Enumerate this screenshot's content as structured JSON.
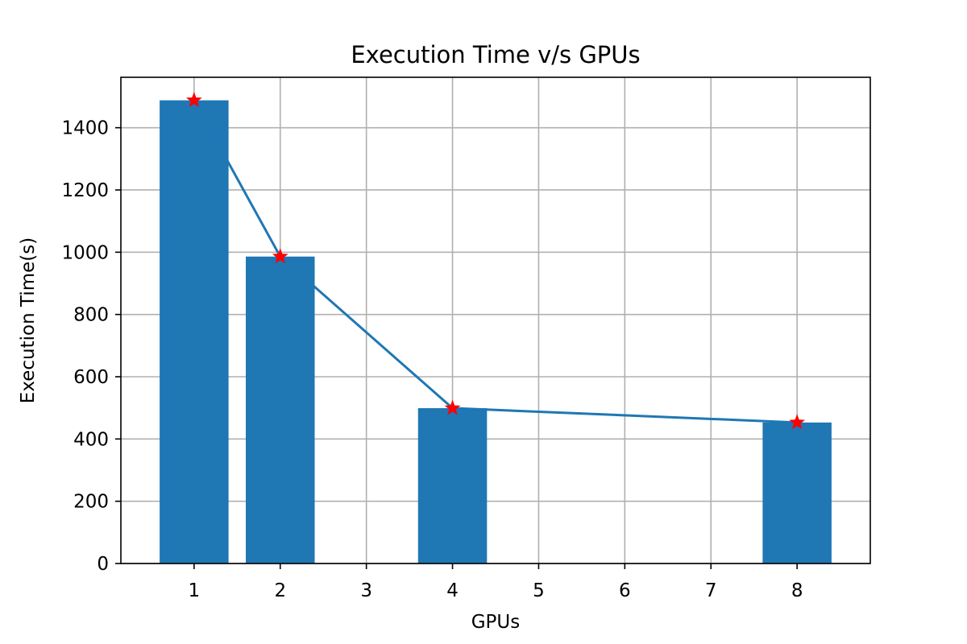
{
  "chart_data": {
    "type": "bar",
    "title": "Execution Time v/s GPUs",
    "xlabel": "GPUs",
    "ylabel": "Execution Time(s)",
    "x": [
      1,
      2,
      4,
      8
    ],
    "values": [
      1488,
      986,
      499,
      453
    ],
    "xticks": [
      1,
      2,
      3,
      4,
      5,
      6,
      7,
      8
    ],
    "yticks": [
      0,
      200,
      400,
      600,
      800,
      1000,
      1200,
      1400
    ],
    "xlim": [
      0.15,
      8.85
    ],
    "ylim": [
      0,
      1562
    ],
    "grid": true,
    "overlay": {
      "type": "line",
      "marker": "star",
      "marker_color": "#ff0000"
    },
    "colors": {
      "bar": "#1f77b4",
      "line": "#1f77b4",
      "marker": "#ff0000",
      "grid": "#b0b0b0"
    }
  }
}
